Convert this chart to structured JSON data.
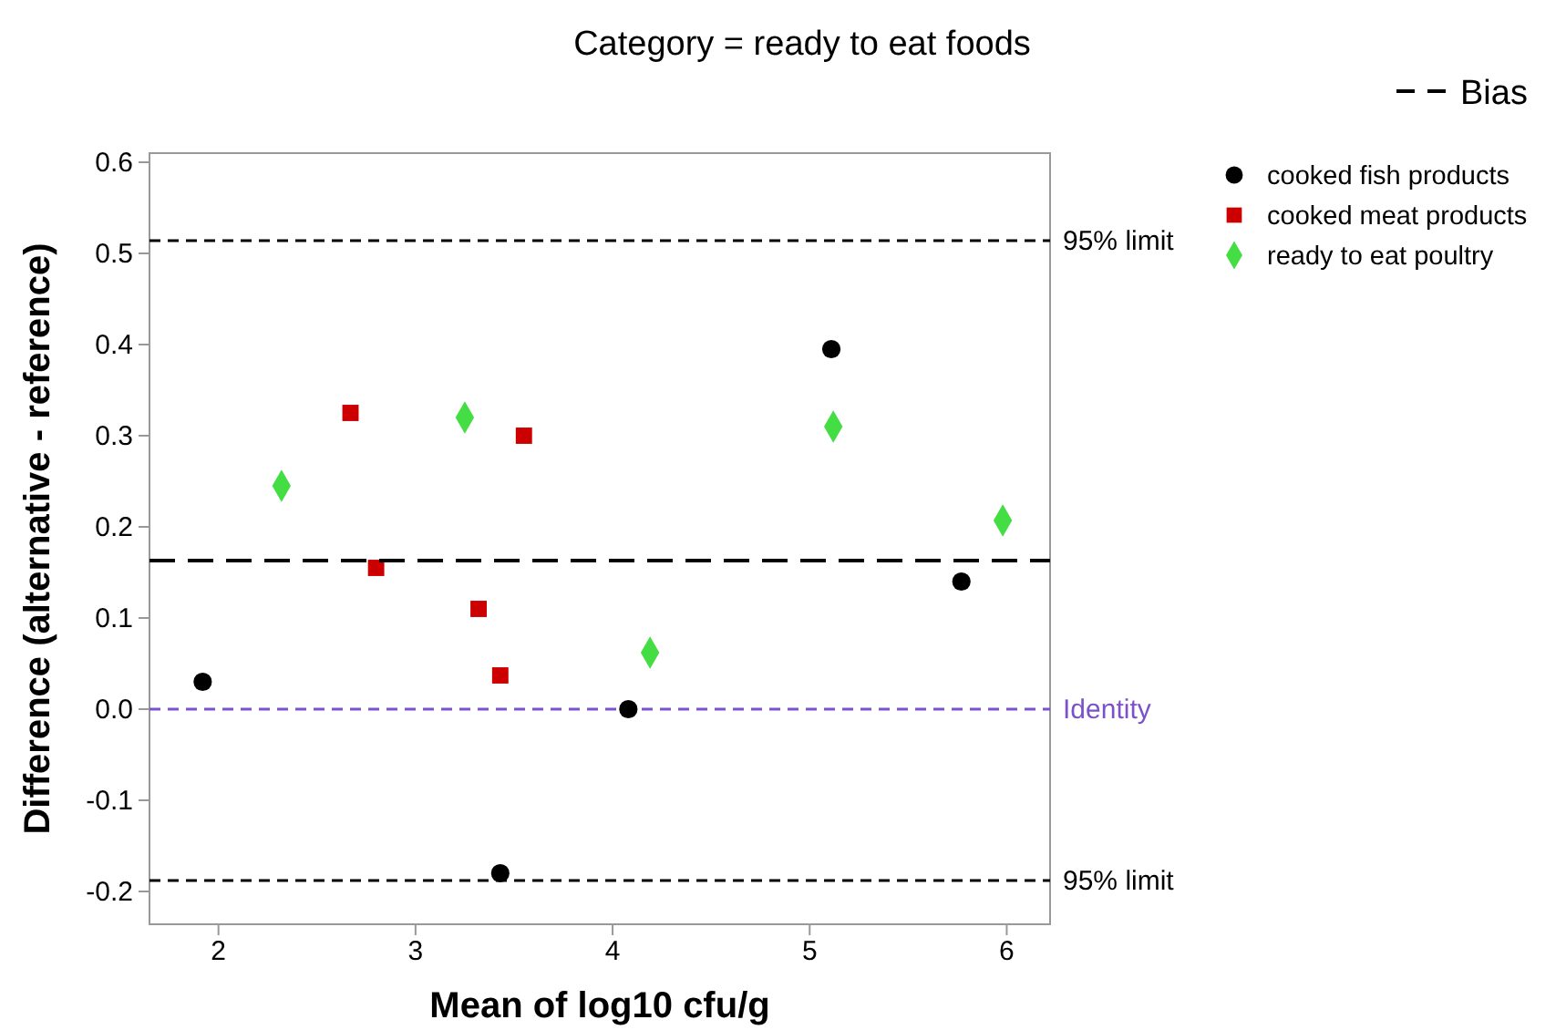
{
  "chart_data": {
    "type": "scatter",
    "title": "Category = ready to eat foods",
    "xlabel": "Mean of log10 cfu/g",
    "ylabel": "Difference (alternative - reference)",
    "xlim": [
      1.65,
      6.22
    ],
    "xticks": [
      2,
      3,
      4,
      5,
      6
    ],
    "ylim": [
      -0.236,
      0.61
    ],
    "yticks": [
      -0.2,
      -0.1,
      {
        "value": 0,
        "label": "0.0"
      },
      0.1,
      0.2,
      0.3,
      0.4,
      0.5,
      0.6
    ],
    "grid": false,
    "legend": "right",
    "series": [
      {
        "name": "cooked fish products",
        "color": "#000000",
        "marker": "circle",
        "x": [
          1.92,
          4.08,
          3.43,
          5.11,
          5.77
        ],
        "values": [
          0.03,
          0.0,
          -0.18,
          0.395,
          0.14
        ]
      },
      {
        "name": "cooked meat products",
        "color": "#cc0000",
        "marker": "square",
        "x": [
          2.67,
          2.8,
          3.55,
          3.32,
          3.43
        ],
        "values": [
          0.325,
          0.155,
          0.3,
          0.11,
          0.037
        ]
      },
      {
        "name": "ready to eat poultry",
        "color": "#44dd44",
        "marker": "diamond",
        "x": [
          2.32,
          3.25,
          5.12,
          4.19,
          5.98
        ],
        "values": [
          0.245,
          0.32,
          0.31,
          0.062,
          0.207
        ]
      },
      {
        "name": "Bias",
        "type": "line",
        "color": "#000000",
        "line_style": "dashed",
        "x": [
          1.65,
          6.22
        ],
        "values": [
          0.163,
          0.163
        ]
      }
    ],
    "ref_lines": [
      {
        "axis": "y",
        "value": 0.514,
        "label": "95% limit",
        "color": "#000000",
        "line_style": "dashed"
      },
      {
        "axis": "y",
        "value": -0.188,
        "label": "95% limit",
        "color": "#000000",
        "line_style": "dashed"
      },
      {
        "axis": "y",
        "value": 0,
        "label": "Identity",
        "color": "#7b52c9",
        "line_style": "dashed"
      }
    ]
  }
}
